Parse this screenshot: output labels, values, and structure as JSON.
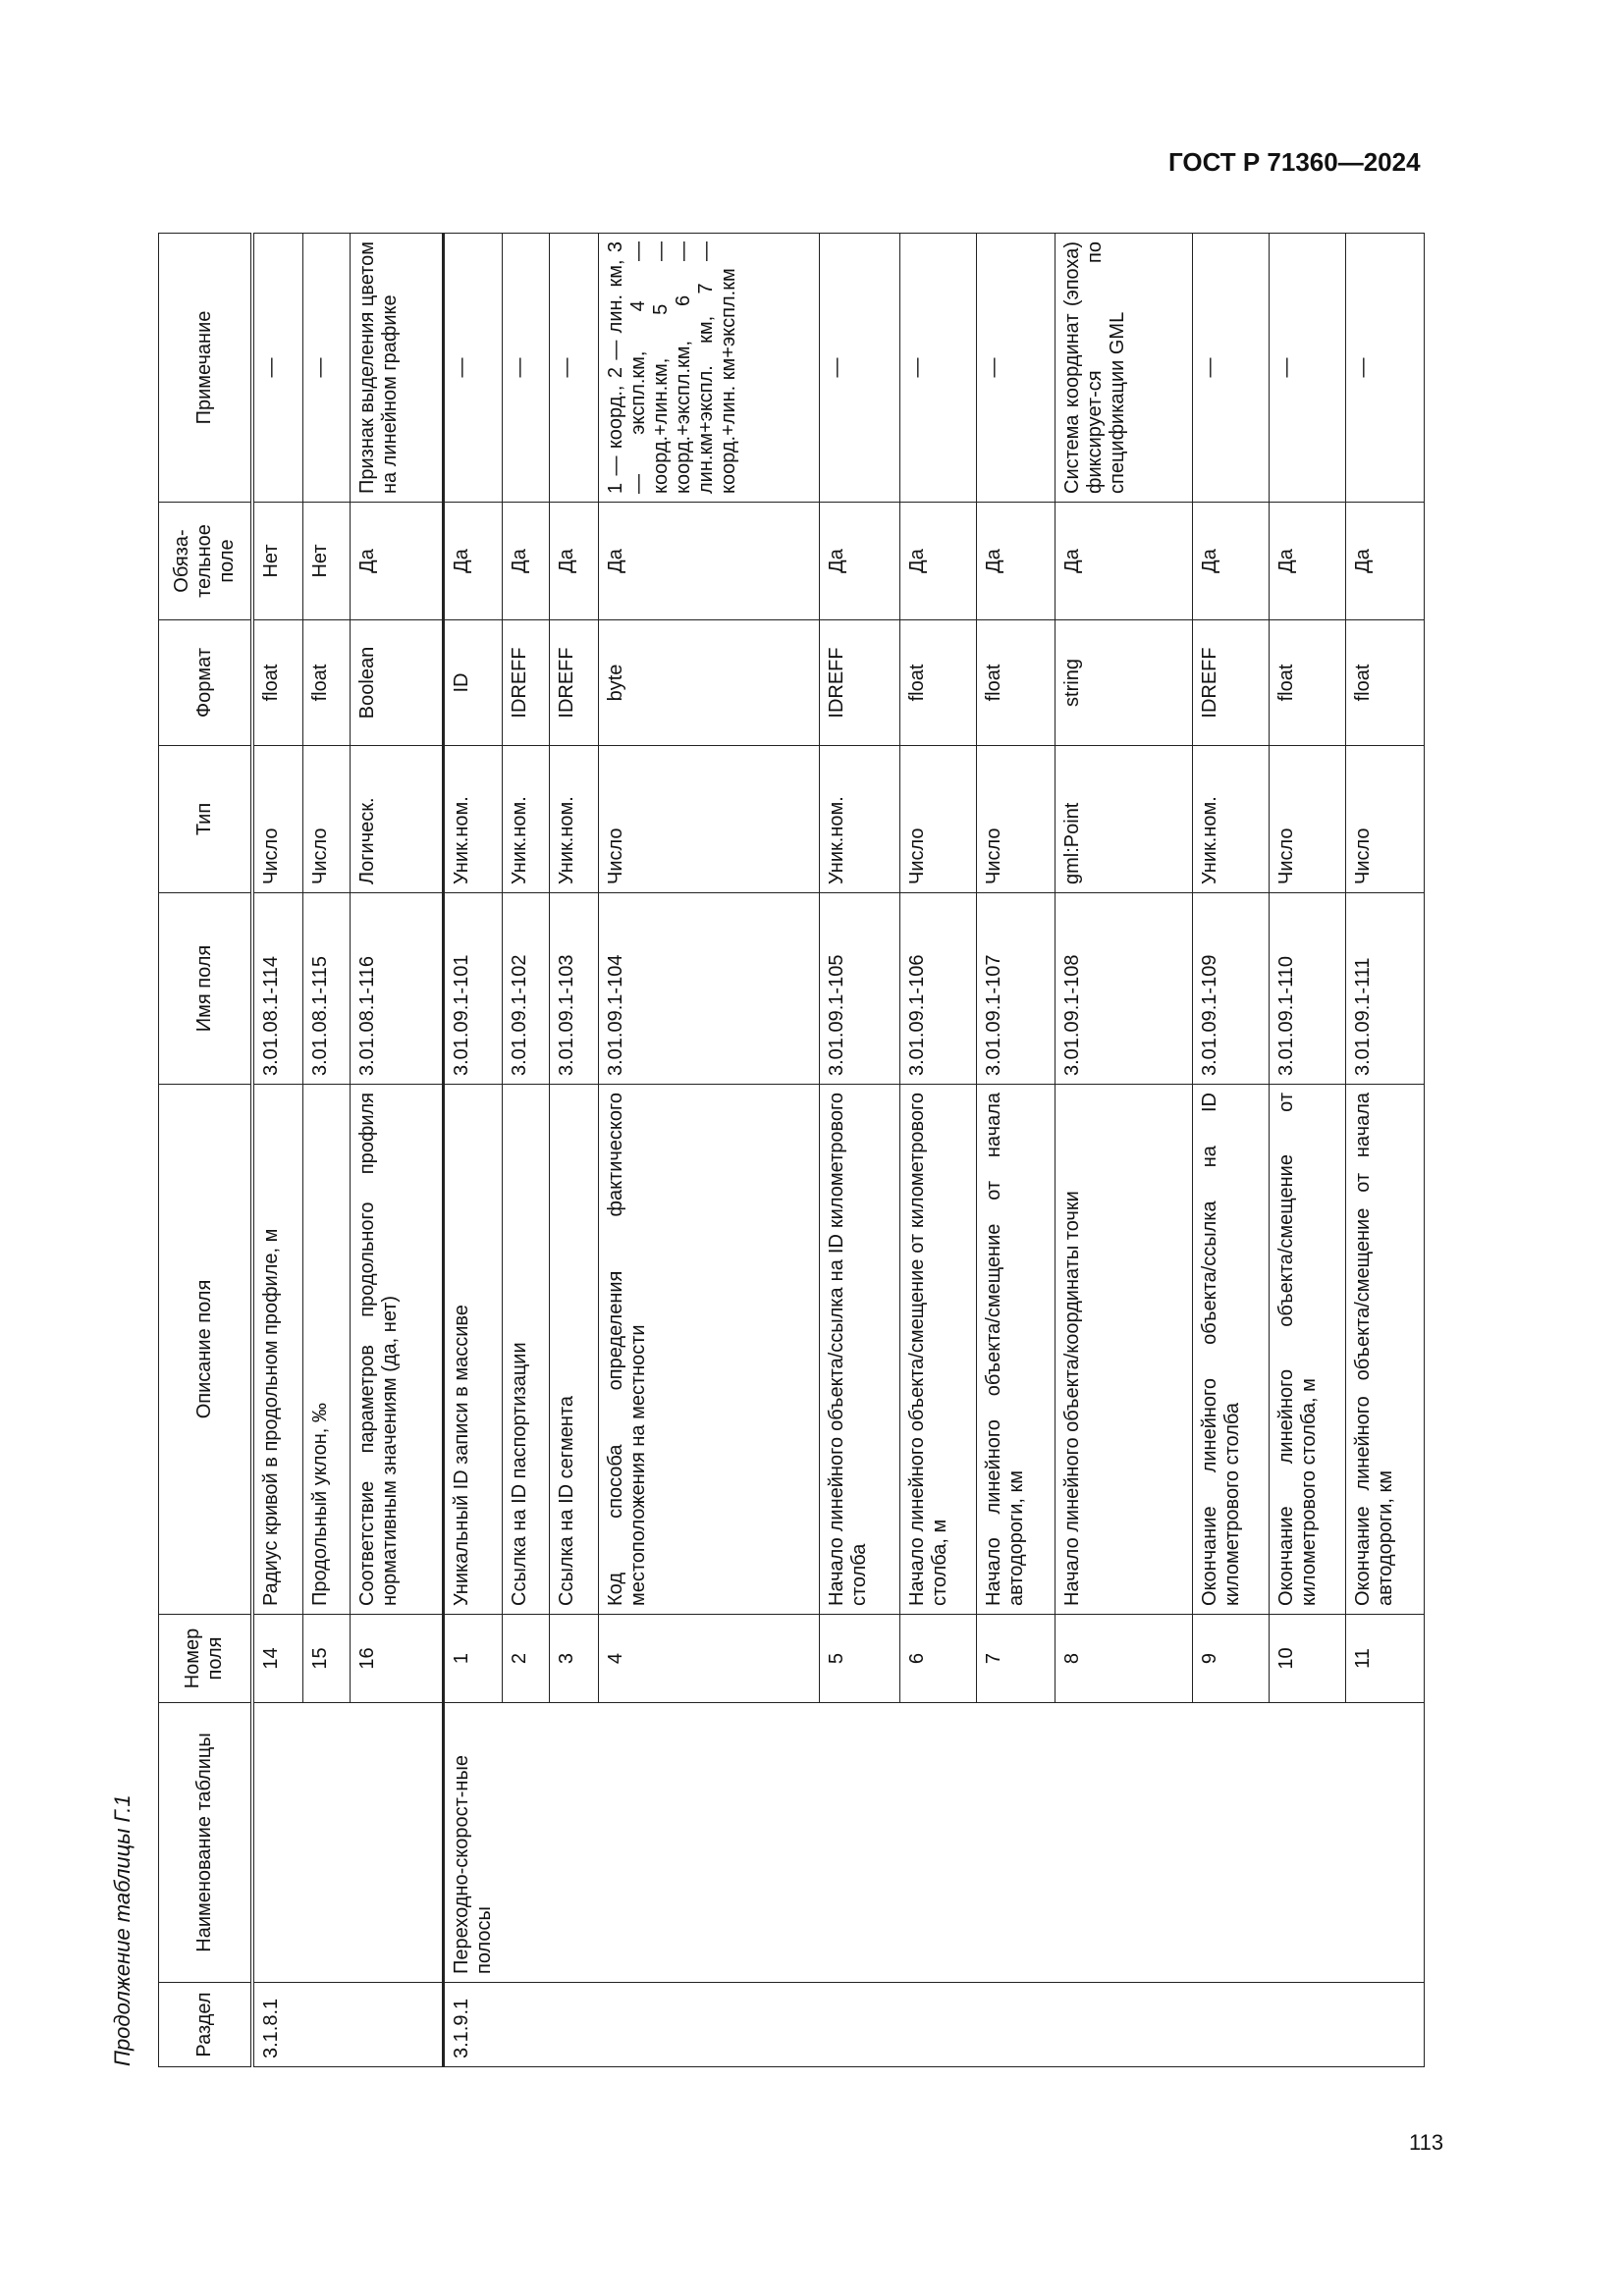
{
  "header": {
    "document_code": "ГОСТ Р 71360—2024"
  },
  "caption": "Продолжение таблицы Г.1",
  "page_number": "113",
  "table": {
    "columns": [
      "Раздел",
      "Наименование таблицы",
      "Номер поля",
      "Описание поля",
      "Имя поля",
      "Тип",
      "Формат",
      "Обяза-тельное поле",
      "Примечание"
    ],
    "groups": [
      {
        "section": "3.1.8.1",
        "table_name": ""
      },
      {
        "section": "3.1.9.1",
        "table_name": "Переходно-скорост-ные полосы"
      }
    ],
    "rows": [
      {
        "num": "14",
        "desc": "Радиус кривой в продольном профиле, м",
        "name": "3.01.08.1-114",
        "type": "Число",
        "format": "float",
        "required": "Нет",
        "note": "—"
      },
      {
        "num": "15",
        "desc": "Продольный уклон, ‰",
        "name": "3.01.08.1-115",
        "type": "Число",
        "format": "float",
        "required": "Нет",
        "note": "—"
      },
      {
        "num": "16",
        "desc": "Соответствие параметров продольного профиля нормативным значениям (да, нет)",
        "name": "3.01.08.1-116",
        "type": "Логическ.",
        "format": "Boolean",
        "required": "Да",
        "note": "Признак выделения цветом на линейном графике"
      },
      {
        "num": "1",
        "desc": "Уникальный ID записи в массиве",
        "name": "3.01.09.1-101",
        "type": "Уник.ном.",
        "format": "ID",
        "required": "Да",
        "note": "—"
      },
      {
        "num": "2",
        "desc": "Ссылка на ID паспортизации",
        "name": "3.01.09.1-102",
        "type": "Уник.ном.",
        "format": "IDREFF",
        "required": "Да",
        "note": "—"
      },
      {
        "num": "3",
        "desc": "Ссылка на ID сегмента",
        "name": "3.01.09.1-103",
        "type": "Уник.ном.",
        "format": "IDREFF",
        "required": "Да",
        "note": "—"
      },
      {
        "num": "4",
        "desc": "Код способа определения фактического местоположения на местности",
        "name": "3.01.09.1-104",
        "type": "Число",
        "format": "byte",
        "required": "Да",
        "note": "1 — коорд., 2 — лин. км, 3 — экспл.км, 4 — коорд.+лин.км, 5 — коорд.+экспл.км, 6 — лин.км+экспл. км, 7 — коорд.+лин. км+экспл.км"
      },
      {
        "num": "5",
        "desc": "Начало линейного объекта/ссылка на ID километрового столба",
        "name": "3.01.09.1-105",
        "type": "Уник.ном.",
        "format": "IDREFF",
        "required": "Да",
        "note": "—"
      },
      {
        "num": "6",
        "desc": "Начало линейного объекта/смещение от километрового столба, м",
        "name": "3.01.09.1-106",
        "type": "Число",
        "format": "float",
        "required": "Да",
        "note": "—"
      },
      {
        "num": "7",
        "desc": "Начало линейного объекта/смещение от начала автодороги, км",
        "name": "3.01.09.1-107",
        "type": "Число",
        "format": "float",
        "required": "Да",
        "note": "—"
      },
      {
        "num": "8",
        "desc": "Начало линейного объекта/координаты точки",
        "name": "3.01.09.1-108",
        "type": "gml:Point",
        "format": "string",
        "required": "Да",
        "note": "Система координат (эпоха) фиксирует-ся по спецификации GML"
      },
      {
        "num": "9",
        "desc": "Окончание линейного объекта/ссылка на ID километрового столба",
        "name": "3.01.09.1-109",
        "type": "Уник.ном.",
        "format": "IDREFF",
        "required": "Да",
        "note": "—"
      },
      {
        "num": "10",
        "desc": "Окончание линейного объекта/смещение от километрового столба, м",
        "name": "3.01.09.1-110",
        "type": "Число",
        "format": "float",
        "required": "Да",
        "note": "—"
      },
      {
        "num": "11",
        "desc": "Окончание линейного объекта/смещение от начала автодороги, км",
        "name": "3.01.09.1-111",
        "type": "Число",
        "format": "float",
        "required": "Да",
        "note": "—"
      }
    ]
  }
}
